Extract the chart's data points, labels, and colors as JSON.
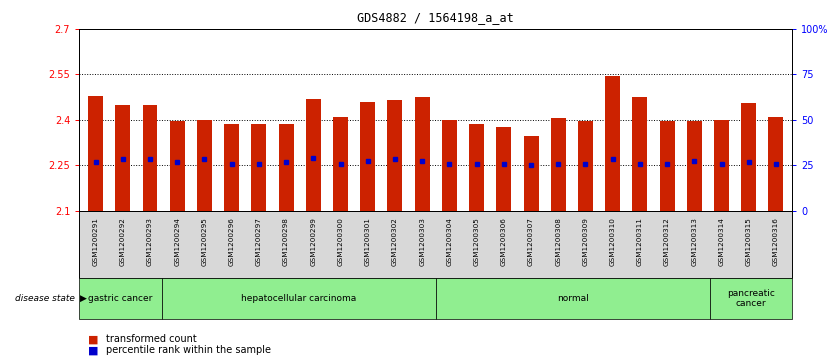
{
  "title": "GDS4882 / 1564198_a_at",
  "samples": [
    "GSM1200291",
    "GSM1200292",
    "GSM1200293",
    "GSM1200294",
    "GSM1200295",
    "GSM1200296",
    "GSM1200297",
    "GSM1200298",
    "GSM1200299",
    "GSM1200300",
    "GSM1200301",
    "GSM1200302",
    "GSM1200303",
    "GSM1200304",
    "GSM1200305",
    "GSM1200306",
    "GSM1200307",
    "GSM1200308",
    "GSM1200309",
    "GSM1200310",
    "GSM1200311",
    "GSM1200312",
    "GSM1200313",
    "GSM1200314",
    "GSM1200315",
    "GSM1200316"
  ],
  "bar_values": [
    2.48,
    2.45,
    2.45,
    2.395,
    2.4,
    2.385,
    2.385,
    2.385,
    2.47,
    2.41,
    2.46,
    2.465,
    2.475,
    2.4,
    2.385,
    2.375,
    2.345,
    2.405,
    2.395,
    2.545,
    2.475,
    2.395,
    2.395,
    2.4,
    2.455,
    2.41
  ],
  "blue_marker_values": [
    2.26,
    2.27,
    2.27,
    2.26,
    2.27,
    2.255,
    2.255,
    2.26,
    2.275,
    2.255,
    2.265,
    2.27,
    2.265,
    2.255,
    2.255,
    2.255,
    2.25,
    2.255,
    2.255,
    2.27,
    2.255,
    2.255,
    2.265,
    2.255,
    2.26,
    2.255
  ],
  "ylim": [
    2.1,
    2.7
  ],
  "yticks": [
    2.1,
    2.25,
    2.4,
    2.55,
    2.7
  ],
  "ytick_labels": [
    "2.1",
    "2.25",
    "2.4",
    "2.55",
    "2.7"
  ],
  "right_yticks": [
    0,
    25,
    50,
    75,
    100
  ],
  "right_ytick_labels": [
    "0",
    "25",
    "50",
    "75",
    "100%"
  ],
  "grid_values": [
    2.25,
    2.4,
    2.55
  ],
  "bar_color": "#cc2200",
  "blue_marker_color": "#0000cc",
  "disease_groups": [
    {
      "label": "gastric cancer",
      "start": 0,
      "end": 3
    },
    {
      "label": "hepatocellular carcinoma",
      "start": 3,
      "end": 13
    },
    {
      "label": "normal",
      "start": 13,
      "end": 23
    },
    {
      "label": "pancreatic\ncancer",
      "start": 23,
      "end": 26
    }
  ],
  "disease_state_label": "disease state",
  "legend_items": [
    {
      "label": "transformed count",
      "color": "#cc2200"
    },
    {
      "label": "percentile rank within the sample",
      "color": "#0000cc"
    }
  ],
  "bar_width": 0.55,
  "plot_bg_color": "#ffffff",
  "xtick_bg_color": "#d8d8d8",
  "group_color": "#90ee90"
}
